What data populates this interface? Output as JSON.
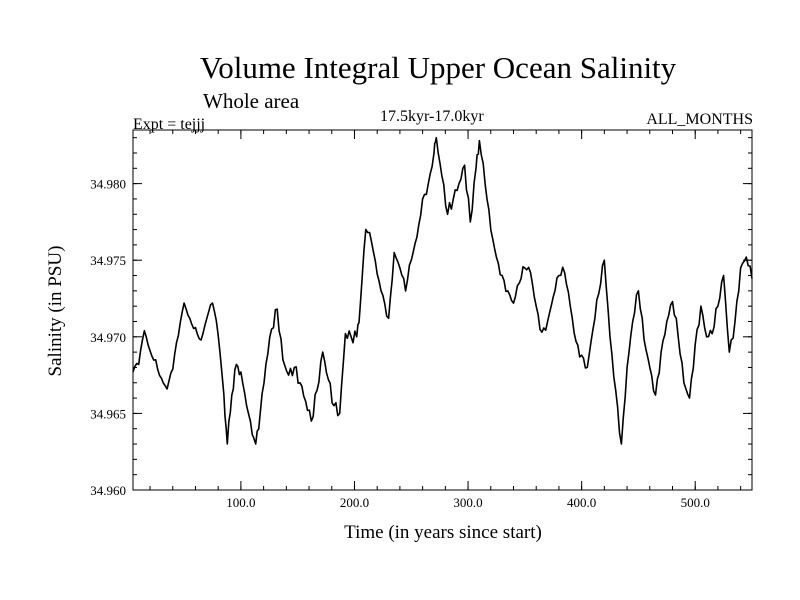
{
  "header": {
    "expt": "Expt = tejjj",
    "period": "17.5kyr-17.0kyr",
    "months": "ALL_MONTHS"
  },
  "chart_data": {
    "type": "line",
    "title": "Volume Integral Upper Ocean Salinity",
    "subtitle": "Whole area",
    "xlabel": "Time (in years since start)",
    "ylabel": "Salinity (in PSU)",
    "xlim": [
      5,
      550
    ],
    "ylim": [
      34.96,
      34.9835
    ],
    "xticks": [
      100,
      200,
      300,
      400,
      500
    ],
    "xtick_labels": [
      "100.0",
      "200.0",
      "300.0",
      "400.0",
      "500.0"
    ],
    "yticks": [
      34.96,
      34.965,
      34.97,
      34.975,
      34.98
    ],
    "ytick_labels": [
      "34.960",
      "34.965",
      "34.970",
      "34.975",
      "34.980"
    ],
    "grid": false,
    "series": [
      {
        "name": "Salinity",
        "x": [
          5,
          10,
          15,
          20,
          25,
          30,
          35,
          40,
          45,
          50,
          55,
          60,
          65,
          70,
          75,
          80,
          85,
          88,
          92,
          96,
          100,
          105,
          110,
          113,
          117,
          122,
          127,
          132,
          137,
          142,
          147,
          152,
          157,
          162,
          167,
          172,
          177,
          182,
          187,
          192,
          197,
          202,
          205,
          210,
          215,
          220,
          225,
          230,
          235,
          240,
          245,
          250,
          255,
          260,
          265,
          270,
          272,
          277,
          282,
          287,
          292,
          297,
          302,
          307,
          310,
          315,
          320,
          325,
          330,
          335,
          340,
          345,
          350,
          355,
          360,
          365,
          370,
          375,
          380,
          385,
          390,
          395,
          400,
          405,
          410,
          415,
          420,
          425,
          430,
          435,
          440,
          445,
          450,
          455,
          460,
          465,
          470,
          475,
          480,
          485,
          490,
          495,
          500,
          505,
          510,
          515,
          520,
          525,
          530,
          535,
          540,
          545,
          550
        ],
        "values": [
          34.9677,
          34.9682,
          34.9704,
          34.9691,
          34.9685,
          34.9673,
          34.9666,
          34.9679,
          34.9701,
          34.9722,
          34.9712,
          34.9706,
          34.9698,
          34.9712,
          34.9722,
          34.9701,
          34.9662,
          34.963,
          34.9662,
          34.9682,
          34.9677,
          34.9655,
          34.9636,
          34.963,
          34.965,
          34.9682,
          34.9705,
          34.9718,
          34.9685,
          34.9675,
          34.968,
          34.967,
          34.9658,
          34.9645,
          34.9665,
          34.969,
          34.9672,
          34.9655,
          34.965,
          34.9702,
          34.97,
          34.97,
          34.972,
          34.977,
          34.9762,
          34.9741,
          34.9727,
          34.9712,
          34.9755,
          34.9745,
          34.973,
          34.975,
          34.9765,
          34.979,
          34.98,
          34.982,
          34.983,
          34.9805,
          34.978,
          34.979,
          34.98,
          34.9812,
          34.9775,
          34.981,
          34.9828,
          34.98,
          34.977,
          34.9752,
          34.974,
          34.973,
          34.9722,
          34.9735,
          34.9745,
          34.9742,
          34.972,
          34.9703,
          34.971,
          34.9726,
          34.974,
          34.9742,
          34.972,
          34.9697,
          34.9688,
          34.968,
          34.9705,
          34.9728,
          34.975,
          34.97,
          34.9665,
          34.963,
          34.968,
          34.971,
          34.973,
          34.9698,
          34.968,
          34.9662,
          34.969,
          34.971,
          34.9723,
          34.97,
          34.967,
          34.966,
          34.9695,
          34.972,
          34.97,
          34.9702,
          34.972,
          34.974,
          34.969,
          34.971,
          34.9745,
          34.9752,
          34.9738
        ]
      }
    ]
  }
}
